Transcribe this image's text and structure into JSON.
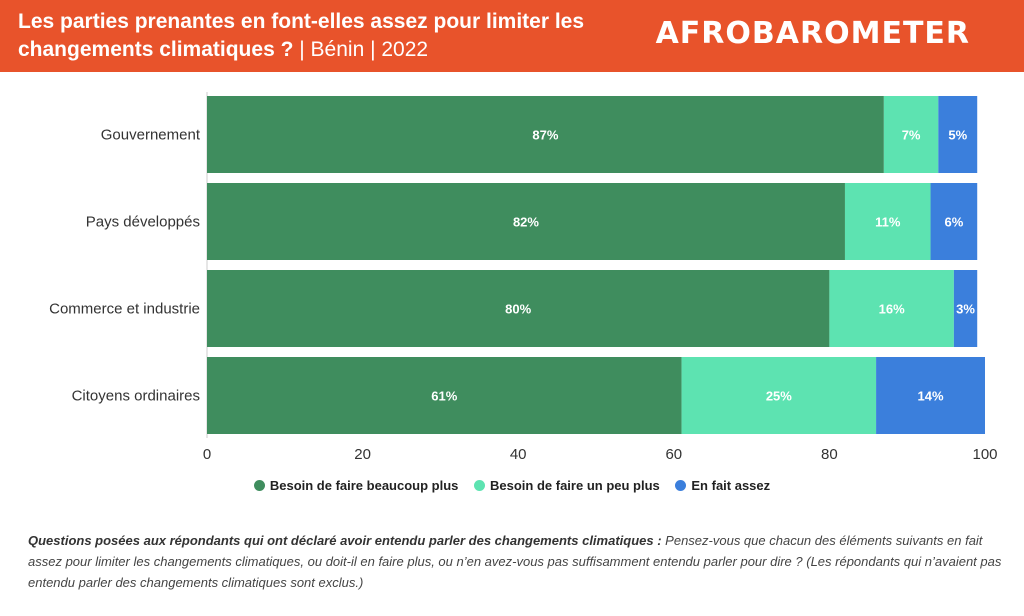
{
  "header": {
    "title_bold": "Les parties prenantes en font-elles assez pour limiter les changements climatiques ?",
    "title_rest": " | Bénin | 2022",
    "logo": "AFROBAROMETER"
  },
  "colors": {
    "header_bg": "#e8532b",
    "series": [
      "#3f8d5e",
      "#5de3b1",
      "#3b7fdc"
    ]
  },
  "chart_data": {
    "type": "bar",
    "orientation": "horizontal",
    "stacked": true,
    "categories": [
      "Gouvernement",
      "Pays développés",
      "Commerce et industrie",
      "Citoyens ordinaires"
    ],
    "series": [
      {
        "name": "Besoin de faire beaucoup plus",
        "values": [
          87,
          82,
          80,
          61
        ],
        "labels": [
          "87%",
          "82%",
          "80%",
          "61%"
        ]
      },
      {
        "name": "Besoin de faire un peu plus",
        "values": [
          7,
          11,
          16,
          25
        ],
        "labels": [
          "7%",
          "11%",
          "16%",
          "25%"
        ]
      },
      {
        "name": "En fait assez",
        "values": [
          5,
          6,
          3,
          14
        ],
        "labels": [
          "5%",
          "6%",
          "3%",
          "14%"
        ]
      }
    ],
    "xlim": [
      0,
      100
    ],
    "xticks": [
      "0",
      "20",
      "40",
      "60",
      "80",
      "100"
    ],
    "grid": false,
    "legend_position": "bottom"
  },
  "footnote": {
    "question_label": "Questions posées aux répondants qui ont déclaré avoir entendu parler des changements climatiques :",
    "question_text": " Pensez-vous que chacun des éléments suivants en fait assez pour limiter les changements climatiques, ou doit-il en faire plus, ou n’en avez-vous pas suffisamment entendu parler pour dire ? (Les répondants qui n’avaient pas entendu parler des changements climatiques sont exclus.)"
  }
}
